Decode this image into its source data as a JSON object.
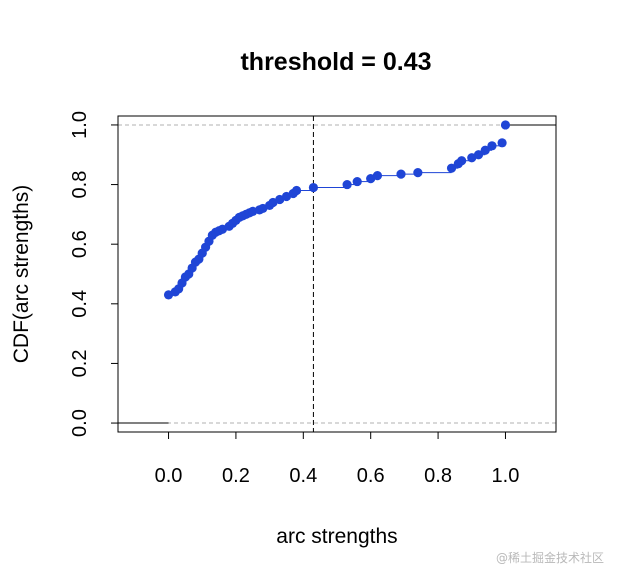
{
  "chart_data": {
    "type": "scatter",
    "title": "threshold =  0.43",
    "xlabel": "arc strengths",
    "ylabel": "CDF(arc strengths)",
    "xlim": [
      -0.15,
      1.15
    ],
    "ylim": [
      -0.03,
      1.03
    ],
    "x_ticks": [
      "0.0",
      "0.2",
      "0.4",
      "0.6",
      "0.8",
      "1.0"
    ],
    "y_ticks": [
      "0.0",
      "0.2",
      "0.4",
      "0.6",
      "0.8",
      "1.0"
    ],
    "threshold": 0.43,
    "colors": {
      "points": "#1f45d6",
      "step_line": "#1f45d6",
      "threshold_line": "#000000",
      "reference_lines": "#b0b0b0"
    },
    "series": [
      {
        "x": [
          0.0,
          0.02,
          0.03,
          0.04,
          0.05,
          0.06,
          0.07,
          0.08,
          0.09,
          0.1,
          0.11,
          0.12,
          0.13,
          0.14,
          0.15,
          0.16,
          0.18,
          0.19,
          0.2,
          0.21,
          0.22,
          0.23,
          0.24,
          0.25,
          0.27,
          0.28,
          0.3,
          0.31,
          0.33,
          0.35,
          0.37,
          0.38,
          0.43,
          0.53,
          0.56,
          0.6,
          0.62,
          0.69,
          0.74,
          0.84,
          0.86,
          0.87,
          0.9,
          0.92,
          0.94,
          0.96,
          0.99,
          1.0
        ],
        "y": [
          0.43,
          0.44,
          0.45,
          0.47,
          0.49,
          0.5,
          0.52,
          0.54,
          0.55,
          0.57,
          0.59,
          0.61,
          0.63,
          0.64,
          0.645,
          0.65,
          0.66,
          0.67,
          0.68,
          0.69,
          0.695,
          0.7,
          0.705,
          0.71,
          0.715,
          0.72,
          0.73,
          0.74,
          0.75,
          0.76,
          0.77,
          0.78,
          0.79,
          0.8,
          0.81,
          0.82,
          0.83,
          0.835,
          0.84,
          0.855,
          0.87,
          0.88,
          0.89,
          0.9,
          0.915,
          0.93,
          0.94,
          1.0
        ]
      }
    ]
  },
  "watermark": "@稀土掘金技术社区"
}
